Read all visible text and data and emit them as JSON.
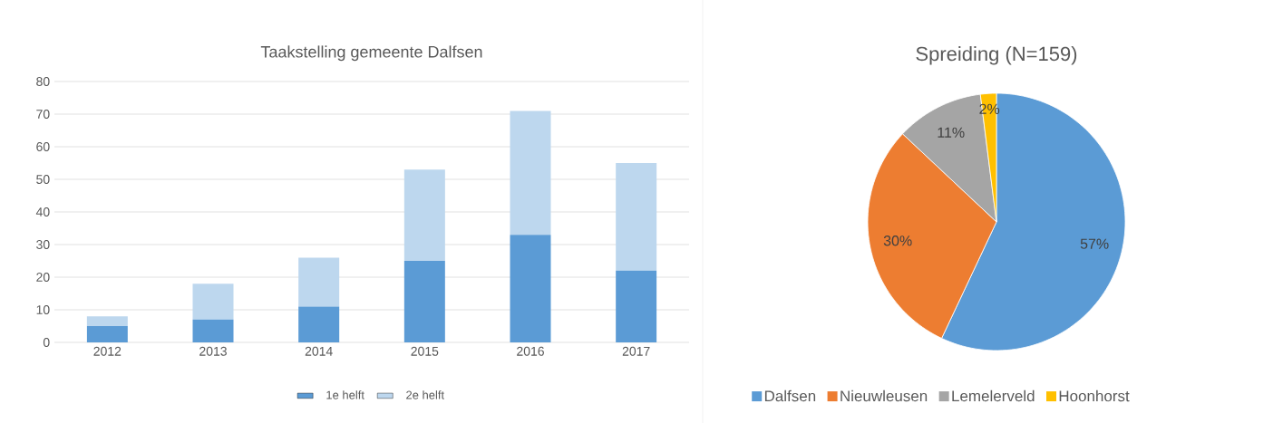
{
  "chart_data": [
    {
      "type": "bar",
      "title": "Taakstelling gemeente Dalfsen",
      "stacked": true,
      "categories": [
        "2012",
        "2013",
        "2014",
        "2015",
        "2016",
        "2017"
      ],
      "series": [
        {
          "name": "1e helft",
          "color": "#5b9bd5",
          "values": [
            5,
            7,
            11,
            25,
            33,
            22
          ]
        },
        {
          "name": "2e helft",
          "color": "#bdd7ee",
          "values": [
            3,
            11,
            15,
            28,
            38,
            33
          ]
        }
      ],
      "ylim": [
        0,
        80
      ],
      "yticks": [
        0,
        10,
        20,
        30,
        40,
        50,
        60,
        70,
        80
      ],
      "grid": "y",
      "legend": "bottom"
    },
    {
      "type": "pie",
      "title": "Spreiding (N=159)",
      "categories": [
        "Dalfsen",
        "Nieuwleusen",
        "Lemelerveld",
        "Hoonhorst"
      ],
      "values": [
        57,
        30,
        11,
        2
      ],
      "colors": [
        "#5b9bd5",
        "#ed7d31",
        "#a5a5a5",
        "#ffc000"
      ],
      "value_labels": [
        "57%",
        "30%",
        "11%",
        "2%"
      ],
      "legend": "bottom"
    }
  ]
}
